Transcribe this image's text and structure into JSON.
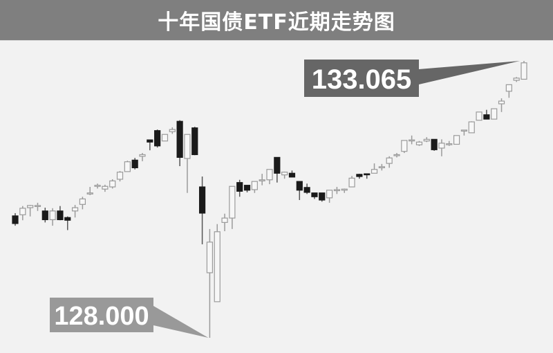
{
  "chart_data": {
    "type": "candlestick",
    "title": "十年国债ETF近期走势图",
    "xlabel": "",
    "ylabel": "",
    "grid": false,
    "legend": "none",
    "colors": {
      "up": "#f7f7f7",
      "up_stroke": "#9a9a9a",
      "down": "#1a1a1a",
      "background": "#f2f2f2",
      "title_bar": "#7f7f7f"
    },
    "ylim": [
      128.0,
      133.065
    ],
    "annotations": [
      {
        "text": "133.065",
        "value": 133.065,
        "candle_index": 68,
        "color": "#666666"
      },
      {
        "text": "128.000",
        "value": 128.0,
        "candle_index": 26,
        "color": "#999999"
      }
    ],
    "ohlc": [
      [
        130.23,
        130.28,
        130.05,
        130.09
      ],
      [
        130.25,
        130.41,
        130.15,
        130.37
      ],
      [
        130.38,
        130.43,
        130.22,
        130.42
      ],
      [
        130.41,
        130.47,
        130.32,
        130.42
      ],
      [
        130.32,
        130.38,
        130.11,
        130.16
      ],
      [
        130.16,
        130.37,
        130.05,
        130.32
      ],
      [
        130.32,
        130.41,
        130.15,
        130.16
      ],
      [
        130.2,
        130.22,
        129.97,
        130.15
      ],
      [
        130.32,
        130.43,
        130.2,
        130.38
      ],
      [
        130.44,
        130.58,
        130.35,
        130.54
      ],
      [
        130.63,
        130.76,
        130.61,
        130.65
      ],
      [
        130.77,
        130.82,
        130.73,
        130.79
      ],
      [
        130.72,
        130.8,
        130.67,
        130.77
      ],
      [
        130.76,
        130.9,
        130.73,
        130.87
      ],
      [
        130.9,
        131.05,
        130.86,
        131.03
      ],
      [
        131.04,
        131.24,
        131.04,
        131.22
      ],
      [
        131.25,
        131.29,
        131.08,
        131.11
      ],
      [
        131.32,
        131.38,
        131.23,
        131.35
      ],
      [
        131.62,
        131.62,
        131.43,
        131.58
      ],
      [
        131.79,
        131.81,
        131.48,
        131.51
      ],
      [
        131.6,
        131.72,
        131.6,
        131.72
      ],
      [
        131.77,
        131.85,
        131.73,
        131.81
      ],
      [
        131.96,
        131.98,
        131.14,
        131.3
      ],
      [
        131.28,
        131.72,
        130.65,
        131.72
      ],
      [
        131.84,
        131.86,
        131.34,
        131.35
      ],
      [
        130.76,
        130.95,
        129.71,
        130.28
      ],
      [
        129.19,
        129.99,
        128.0,
        129.75
      ],
      [
        128.66,
        130.08,
        128.66,
        129.94
      ],
      [
        130.11,
        130.27,
        129.95,
        130.19
      ],
      [
        130.19,
        130.77,
        129.99,
        130.77
      ],
      [
        130.84,
        130.89,
        130.58,
        130.68
      ],
      [
        130.79,
        130.79,
        130.66,
        130.7
      ],
      [
        130.71,
        130.86,
        130.65,
        130.86
      ],
      [
        130.87,
        131.0,
        130.79,
        130.89
      ],
      [
        130.89,
        131.08,
        130.81,
        131.08
      ],
      [
        131.3,
        131.3,
        130.84,
        131.01
      ],
      [
        130.98,
        131.04,
        130.91,
        131.03
      ],
      [
        131.01,
        131.06,
        130.94,
        130.94
      ],
      [
        130.86,
        130.86,
        130.52,
        130.7
      ],
      [
        130.75,
        130.82,
        130.63,
        130.66
      ],
      [
        130.65,
        130.65,
        130.54,
        130.58
      ],
      [
        130.65,
        130.65,
        130.49,
        130.52
      ],
      [
        130.56,
        130.7,
        130.47,
        130.7
      ],
      [
        130.7,
        130.76,
        130.63,
        130.71
      ],
      [
        130.7,
        130.73,
        130.65,
        130.72
      ],
      [
        130.76,
        130.96,
        130.76,
        130.92
      ],
      [
        130.99,
        131.0,
        130.91,
        130.95
      ],
      [
        131.0,
        131.0,
        130.91,
        130.99
      ],
      [
        131.01,
        131.19,
        131.01,
        131.08
      ],
      [
        131.11,
        131.18,
        131.06,
        131.13
      ],
      [
        131.19,
        131.32,
        131.11,
        131.29
      ],
      [
        131.34,
        131.38,
        131.3,
        131.35
      ],
      [
        131.41,
        131.61,
        131.38,
        131.61
      ],
      [
        131.62,
        131.7,
        131.54,
        131.62
      ],
      [
        131.53,
        131.6,
        131.51,
        131.58
      ],
      [
        131.6,
        131.67,
        131.58,
        131.63
      ],
      [
        131.63,
        131.63,
        131.42,
        131.44
      ],
      [
        131.47,
        131.63,
        131.32,
        131.56
      ],
      [
        131.54,
        131.6,
        131.51,
        131.55
      ],
      [
        131.54,
        131.7,
        131.54,
        131.7
      ],
      [
        131.8,
        131.8,
        131.7,
        131.8
      ],
      [
        131.75,
        131.96,
        131.75,
        131.95
      ],
      [
        131.98,
        132.13,
        131.98,
        132.13
      ],
      [
        132.08,
        132.17,
        132.0,
        132.0
      ],
      [
        132.0,
        132.19,
        132.0,
        132.19
      ],
      [
        132.28,
        132.38,
        132.13,
        132.33
      ],
      [
        132.51,
        132.63,
        132.39,
        132.63
      ],
      [
        132.71,
        132.77,
        132.68,
        132.75
      ],
      [
        132.73,
        133.065,
        132.73,
        133.03
      ]
    ]
  }
}
